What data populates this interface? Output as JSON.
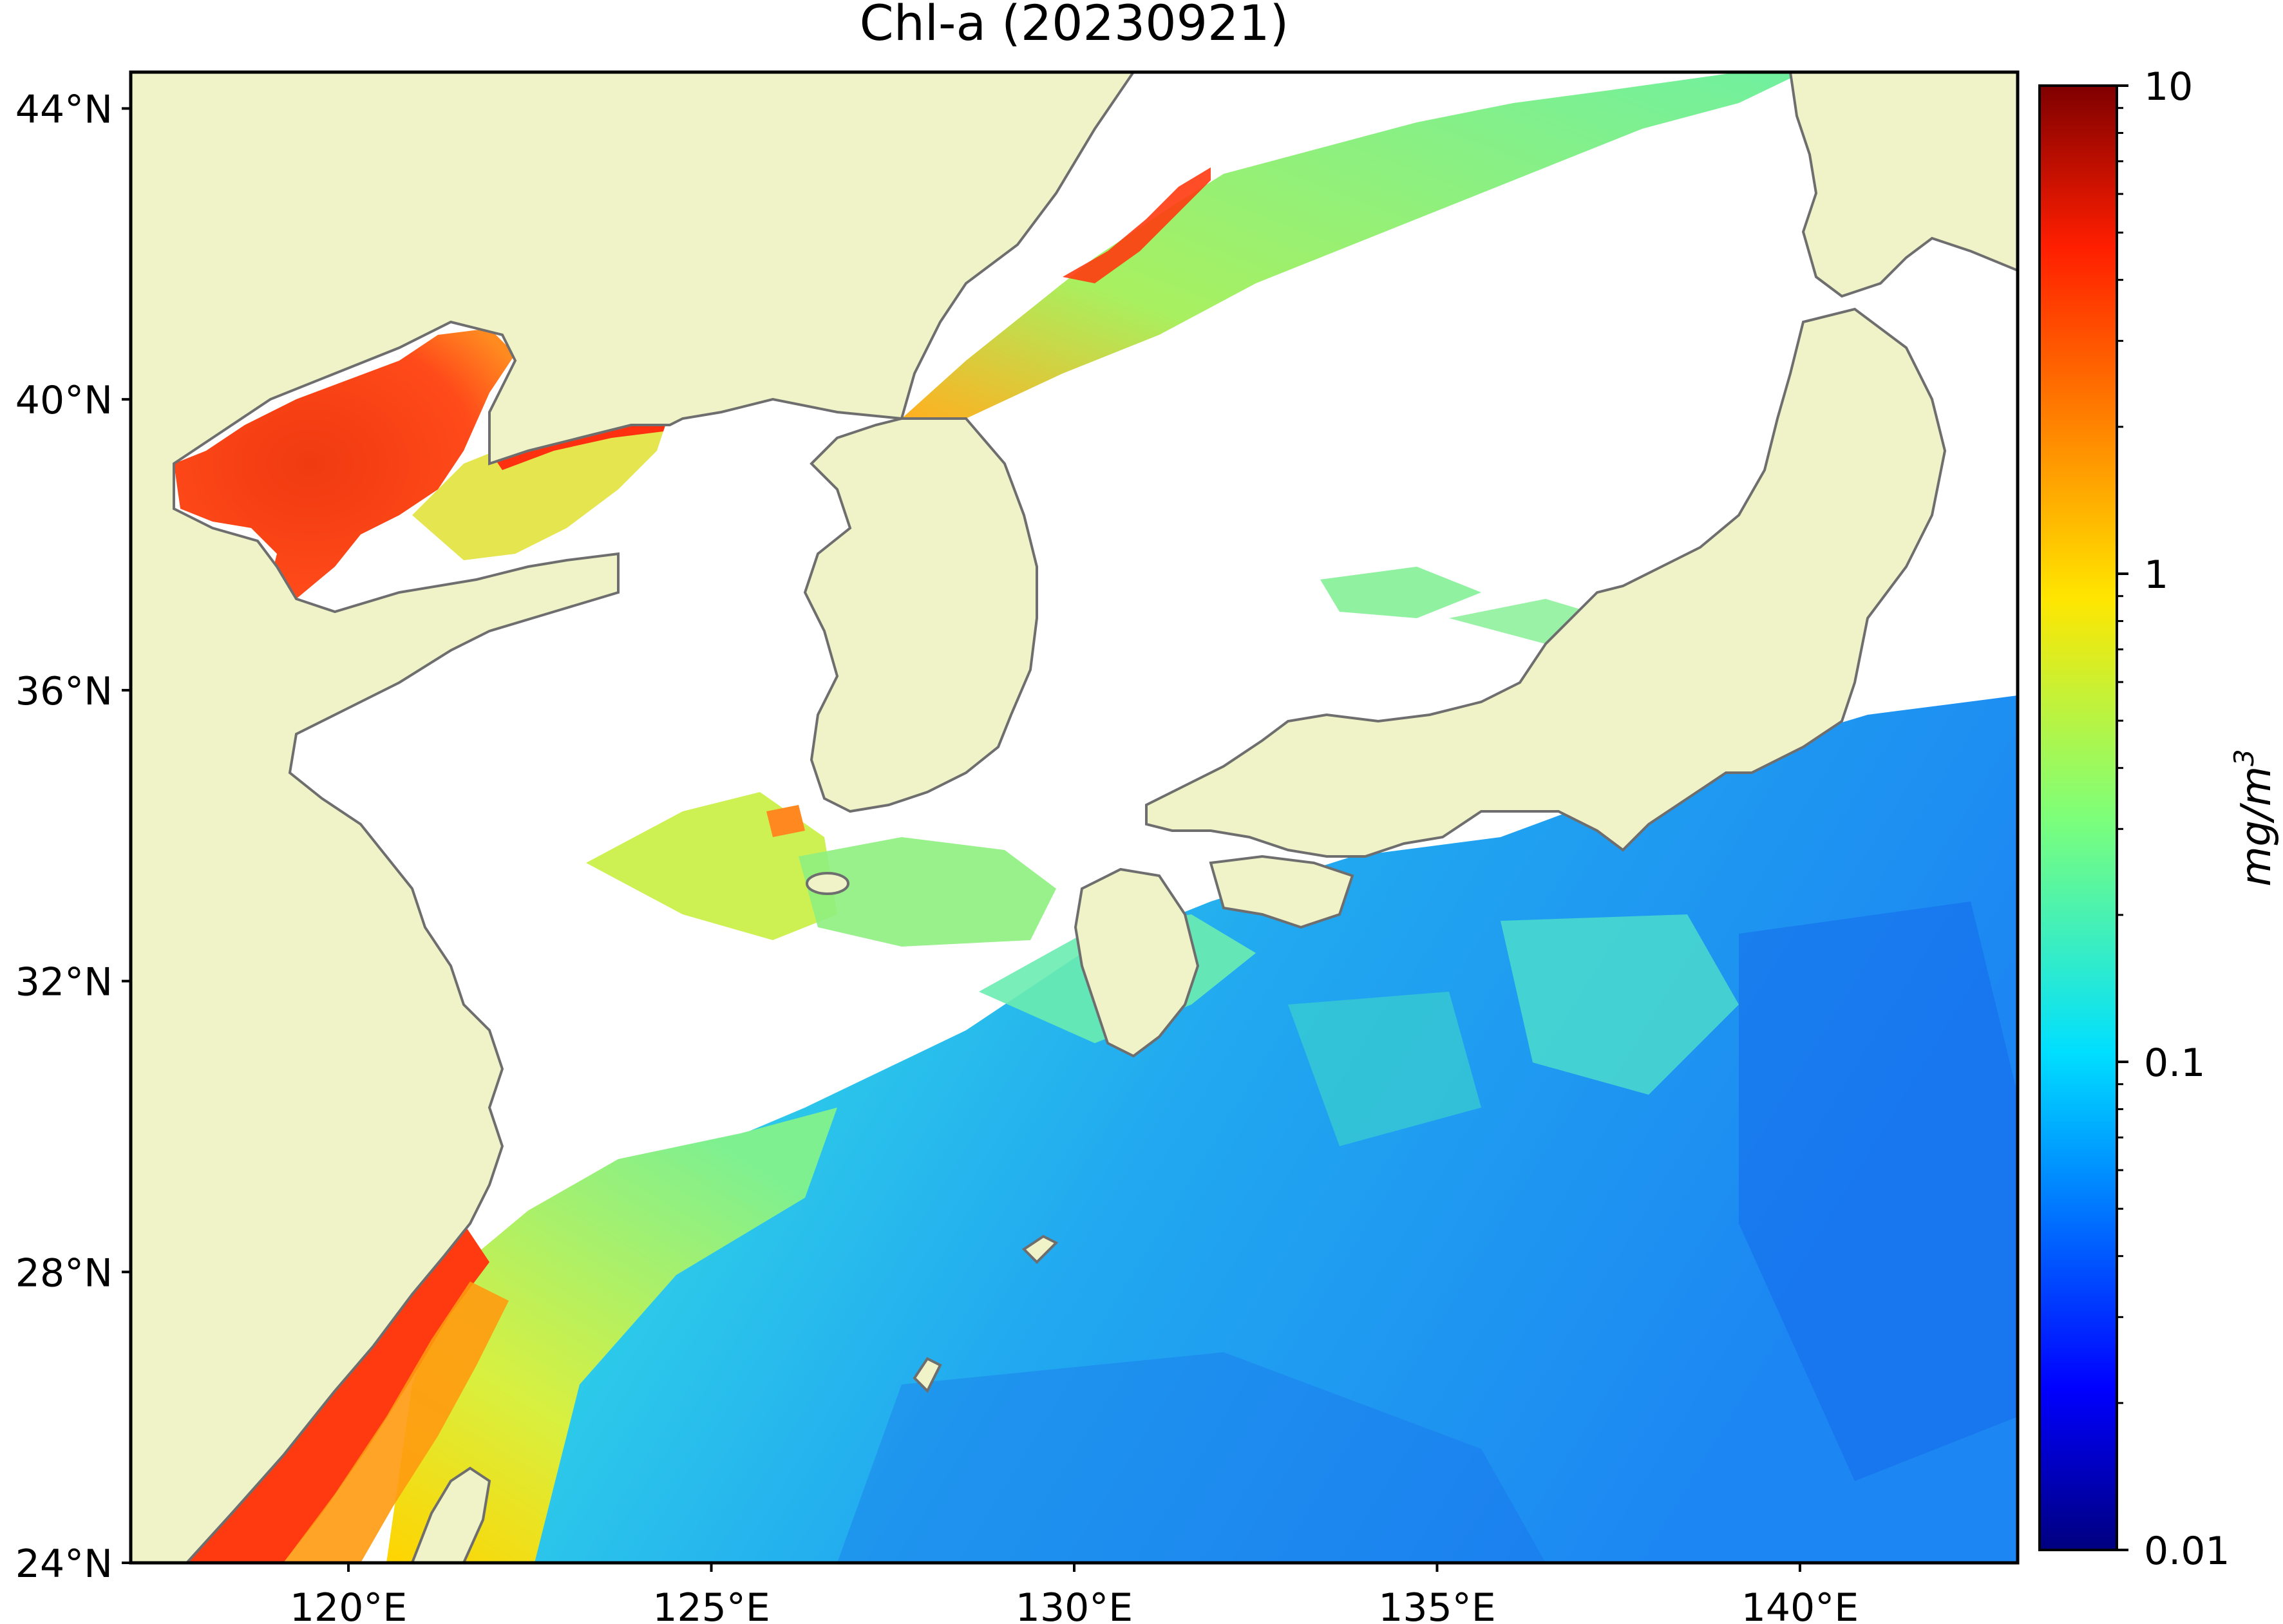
{
  "title": "Chl-a (20230921)",
  "map": {
    "lon_range": [
      117,
      143
    ],
    "lat_range": [
      24,
      44.5
    ],
    "lat_ticks": [
      {
        "value": 44,
        "label": "44°N"
      },
      {
        "value": 40,
        "label": "40°N"
      },
      {
        "value": 36,
        "label": "36°N"
      },
      {
        "value": 32,
        "label": "32°N"
      },
      {
        "value": 28,
        "label": "28°N"
      },
      {
        "value": 24,
        "label": "24°N"
      }
    ],
    "lon_ticks": [
      {
        "value": 120,
        "label": "120°E"
      },
      {
        "value": 125,
        "label": "125°E"
      },
      {
        "value": 130,
        "label": "130°E"
      },
      {
        "value": 135,
        "label": "135°E"
      },
      {
        "value": 140,
        "label": "140°E"
      }
    ],
    "land_color": "#f0f3c8",
    "no_data_color": "#ffffff",
    "coastline_color": "#6e6e6e"
  },
  "colorbar": {
    "scale": "log",
    "min": 0.01,
    "max": 10,
    "colormap": "jet",
    "ticks": [
      {
        "value": 10,
        "label": "10"
      },
      {
        "value": 1,
        "label": "1"
      },
      {
        "value": 0.1,
        "label": "0.1"
      },
      {
        "value": 0.01,
        "label": "0.01"
      }
    ],
    "unit_label": "mg/m",
    "unit_superscript": "3"
  }
}
